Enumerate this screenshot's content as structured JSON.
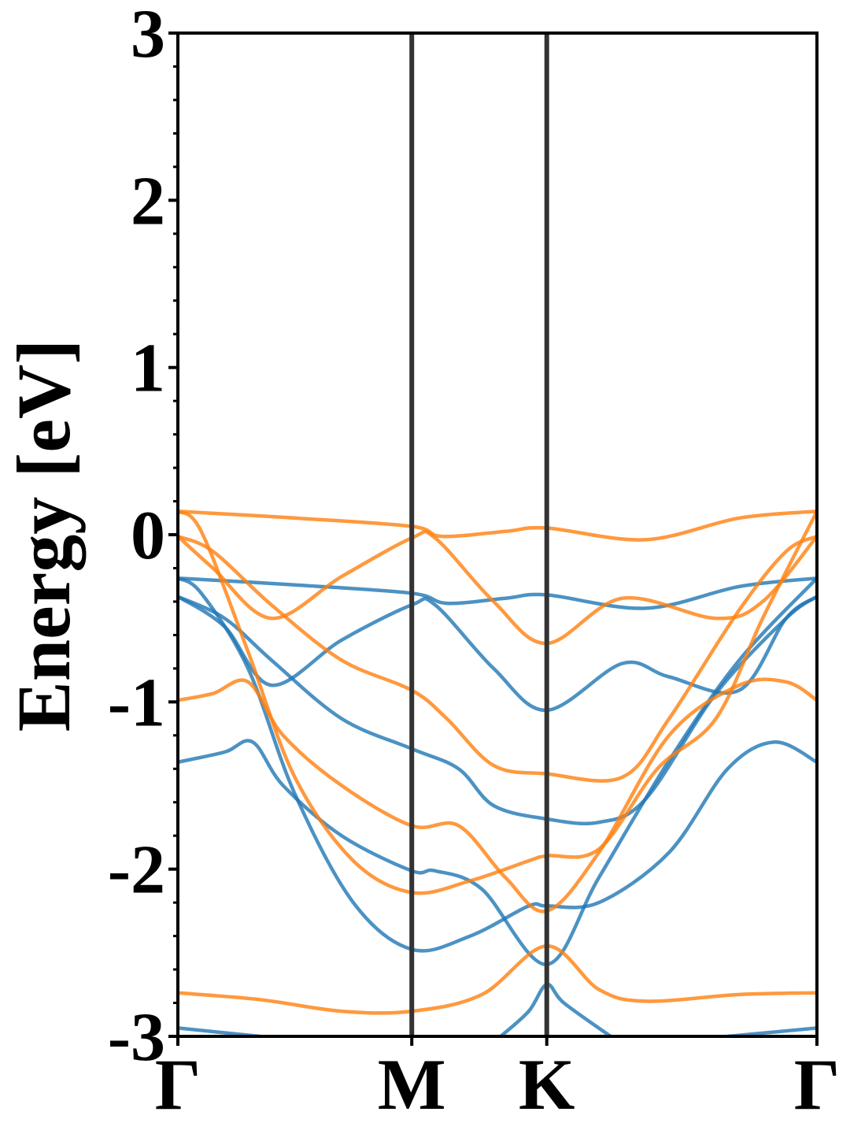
{
  "chart_data": {
    "type": "line",
    "title": "",
    "xlabel": "",
    "ylabel": "Energy [eV]",
    "ylim": [
      -3,
      3
    ],
    "yticks": [
      "-3",
      "-2",
      "-1",
      "0",
      "1",
      "2",
      "3"
    ],
    "k_points": [
      {
        "label": "Γ",
        "k": 0.0
      },
      {
        "label": "M",
        "k": 1.0
      },
      {
        "label": "K",
        "k": 1.577
      },
      {
        "label": "Γ",
        "k": 2.732
      }
    ],
    "grid": false,
    "legend": "none",
    "colors": {
      "spin_a": "#1f77b4",
      "spin_b": "#ff7f0e",
      "kpoint_line": "#333333"
    },
    "series": [
      {
        "group": "spin_a",
        "points": [
          [
            0,
            -0.26
          ],
          [
            0.5,
            -0.3
          ],
          [
            1.0,
            -0.35
          ],
          [
            1.15,
            -0.41
          ],
          [
            1.4,
            -0.38
          ],
          [
            1.577,
            -0.36
          ],
          [
            2.0,
            -0.44
          ],
          [
            2.4,
            -0.31
          ],
          [
            2.732,
            -0.26
          ]
        ]
      },
      {
        "group": "spin_a",
        "points": [
          [
            0,
            -0.37
          ],
          [
            0.2,
            -0.55
          ],
          [
            0.4,
            -0.9
          ],
          [
            0.7,
            -0.63
          ],
          [
            1.0,
            -0.42
          ],
          [
            1.1,
            -0.42
          ],
          [
            1.35,
            -0.8
          ],
          [
            1.577,
            -1.05
          ],
          [
            1.9,
            -0.77
          ],
          [
            2.1,
            -0.85
          ],
          [
            2.4,
            -0.93
          ],
          [
            2.6,
            -0.5
          ],
          [
            2.732,
            -0.37
          ]
        ]
      },
      {
        "group": "spin_a",
        "points": [
          [
            0,
            -0.37
          ],
          [
            0.2,
            -0.5
          ],
          [
            0.4,
            -0.75
          ],
          [
            0.7,
            -1.1
          ],
          [
            1.0,
            -1.28
          ],
          [
            1.2,
            -1.4
          ],
          [
            1.35,
            -1.62
          ],
          [
            1.577,
            -1.7
          ],
          [
            1.8,
            -1.72
          ],
          [
            2.0,
            -1.58
          ],
          [
            2.3,
            -0.95
          ],
          [
            2.6,
            -0.5
          ],
          [
            2.732,
            -0.37
          ]
        ]
      },
      {
        "group": "spin_a",
        "points": [
          [
            0,
            -1.36
          ],
          [
            0.2,
            -1.3
          ],
          [
            0.32,
            -1.24
          ],
          [
            0.45,
            -1.5
          ],
          [
            0.7,
            -1.8
          ],
          [
            1.0,
            -2.01
          ],
          [
            1.1,
            -2.01
          ],
          [
            1.3,
            -2.12
          ],
          [
            1.577,
            -2.57
          ],
          [
            1.8,
            -2.05
          ],
          [
            2.1,
            -1.35
          ],
          [
            2.4,
            -0.75
          ],
          [
            2.732,
            -0.26
          ]
        ]
      },
      {
        "group": "spin_a",
        "points": [
          [
            0,
            -0.26
          ],
          [
            0.1,
            -0.35
          ],
          [
            0.3,
            -0.8
          ],
          [
            0.5,
            -1.55
          ],
          [
            0.75,
            -2.2
          ],
          [
            1.0,
            -2.48
          ],
          [
            1.25,
            -2.4
          ],
          [
            1.5,
            -2.22
          ],
          [
            1.577,
            -2.22
          ],
          [
            1.8,
            -2.2
          ],
          [
            2.1,
            -1.9
          ],
          [
            2.35,
            -1.4
          ],
          [
            2.55,
            -1.24
          ],
          [
            2.732,
            -1.36
          ]
        ]
      },
      {
        "group": "spin_a",
        "points": [
          [
            1.38,
            -3.0
          ],
          [
            1.5,
            -2.85
          ],
          [
            1.577,
            -2.69
          ],
          [
            1.65,
            -2.8
          ],
          [
            1.85,
            -3.0
          ]
        ]
      },
      {
        "group": "spin_a",
        "points": [
          [
            0,
            -2.95
          ],
          [
            0.35,
            -3.0
          ]
        ]
      },
      {
        "group": "spin_a",
        "points": [
          [
            2.35,
            -3.0
          ],
          [
            2.732,
            -2.95
          ]
        ]
      },
      {
        "group": "spin_b",
        "points": [
          [
            0,
            0.14
          ],
          [
            0.5,
            0.1
          ],
          [
            1.0,
            0.05
          ],
          [
            1.13,
            -0.01
          ],
          [
            1.4,
            0.02
          ],
          [
            1.577,
            0.04
          ],
          [
            2.0,
            -0.03
          ],
          [
            2.4,
            0.1
          ],
          [
            2.732,
            0.14
          ]
        ]
      },
      {
        "group": "spin_b",
        "points": [
          [
            0,
            -0.01
          ],
          [
            0.15,
            -0.2
          ],
          [
            0.4,
            -0.5
          ],
          [
            0.7,
            -0.25
          ],
          [
            1.0,
            -0.02
          ],
          [
            1.1,
            -0.02
          ],
          [
            1.35,
            -0.4
          ],
          [
            1.577,
            -0.65
          ],
          [
            1.9,
            -0.38
          ],
          [
            2.3,
            -0.5
          ],
          [
            2.5,
            -0.4
          ],
          [
            2.732,
            -0.01
          ]
        ]
      },
      {
        "group": "spin_b",
        "points": [
          [
            0,
            -0.01
          ],
          [
            0.15,
            -0.1
          ],
          [
            0.4,
            -0.42
          ],
          [
            0.7,
            -0.75
          ],
          [
            1.0,
            -0.93
          ],
          [
            1.15,
            -1.1
          ],
          [
            1.35,
            -1.38
          ],
          [
            1.577,
            -1.43
          ],
          [
            1.9,
            -1.45
          ],
          [
            2.1,
            -1.1
          ],
          [
            2.4,
            -0.45
          ],
          [
            2.6,
            -0.1
          ],
          [
            2.732,
            -0.01
          ]
        ]
      },
      {
        "group": "spin_b",
        "points": [
          [
            0,
            -0.99
          ],
          [
            0.15,
            -0.95
          ],
          [
            0.3,
            -0.88
          ],
          [
            0.45,
            -1.2
          ],
          [
            0.7,
            -1.5
          ],
          [
            1.0,
            -1.74
          ],
          [
            1.2,
            -1.74
          ],
          [
            1.4,
            -2.05
          ],
          [
            1.577,
            -2.25
          ],
          [
            1.8,
            -1.9
          ],
          [
            2.1,
            -1.2
          ],
          [
            2.4,
            -0.9
          ],
          [
            2.6,
            -0.88
          ],
          [
            2.732,
            -0.99
          ]
        ]
      },
      {
        "group": "spin_b",
        "points": [
          [
            0,
            0.14
          ],
          [
            0.1,
            0.02
          ],
          [
            0.3,
            -0.7
          ],
          [
            0.5,
            -1.45
          ],
          [
            0.75,
            -1.95
          ],
          [
            1.0,
            -2.14
          ],
          [
            1.25,
            -2.07
          ],
          [
            1.5,
            -1.95
          ],
          [
            1.577,
            -1.92
          ],
          [
            1.8,
            -1.88
          ],
          [
            2.05,
            -1.4
          ],
          [
            2.3,
            -1.1
          ],
          [
            2.5,
            -0.5
          ],
          [
            2.732,
            0.14
          ]
        ]
      },
      {
        "group": "spin_b",
        "points": [
          [
            0,
            -2.74
          ],
          [
            0.35,
            -2.78
          ],
          [
            0.7,
            -2.85
          ],
          [
            1.0,
            -2.85
          ],
          [
            1.3,
            -2.75
          ],
          [
            1.577,
            -2.46
          ],
          [
            1.8,
            -2.72
          ],
          [
            2.0,
            -2.79
          ],
          [
            2.4,
            -2.75
          ],
          [
            2.732,
            -2.74
          ]
        ]
      }
    ]
  }
}
